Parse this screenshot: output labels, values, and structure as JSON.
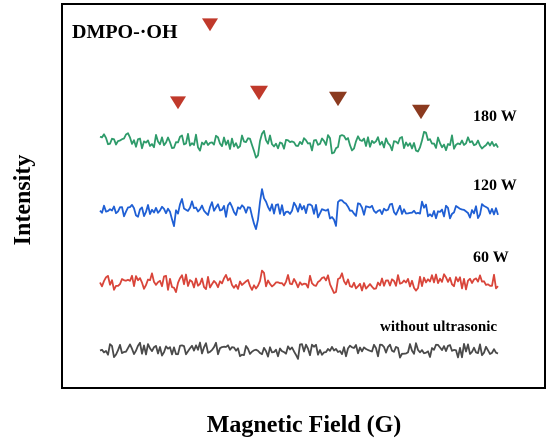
{
  "chart_data": {
    "type": "line",
    "title": "DMPO-·OH",
    "xlabel": "Magnetic Field (G)",
    "ylabel": "Intensity",
    "grid": false,
    "legend": "inline-labels-right",
    "x_ticks_shown": false,
    "y_ticks_shown": false,
    "peak_markers": {
      "positions": [
        1,
        2,
        3,
        4
      ],
      "colors": [
        "#c0392b",
        "#c0392b",
        "#8b3a1f",
        "#8b3a1f"
      ]
    },
    "series": [
      {
        "name": "180 W",
        "color": "#2e9b6a",
        "peak_strength": 0.55
      },
      {
        "name": "120 W",
        "color": "#1f5fd4",
        "peak_strength": 0.6
      },
      {
        "name": "60 W",
        "color": "#d9453a",
        "peak_strength": 0.45
      },
      {
        "name": "without ultrasonic",
        "color": "#4a4a4a",
        "peak_strength": 0.0
      }
    ]
  }
}
